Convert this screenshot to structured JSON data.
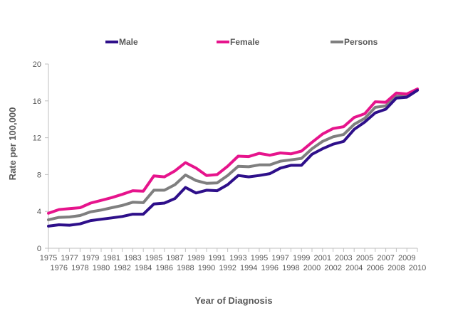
{
  "chart_data": {
    "type": "line",
    "xlabel": "Year of Diagnosis",
    "ylabel": "Rate per 100,000",
    "ylim": [
      0,
      20
    ],
    "yticks": [
      "0",
      "4",
      "8",
      "12",
      "16",
      "20"
    ],
    "grid": false,
    "legend_position": "top",
    "x": [
      "1975",
      "1976",
      "1977",
      "1978",
      "1979",
      "1980",
      "1981",
      "1982",
      "1983",
      "1984",
      "1985",
      "1986",
      "1987",
      "1988",
      "1989",
      "1990",
      "1991",
      "1992",
      "1993",
      "1994",
      "1995",
      "1996",
      "1997",
      "1998",
      "1999",
      "2000",
      "2001",
      "2002",
      "2003",
      "2004",
      "2005",
      "2006",
      "2007",
      "2008",
      "2009",
      "2010"
    ],
    "series": [
      {
        "name": "Male",
        "color": "#2e0f8a",
        "values": [
          2.4,
          2.55,
          2.5,
          2.65,
          3.0,
          3.15,
          3.3,
          3.45,
          3.7,
          3.7,
          4.8,
          4.9,
          5.4,
          6.6,
          6.0,
          6.3,
          6.25,
          6.9,
          7.9,
          7.75,
          7.9,
          8.1,
          8.7,
          9.0,
          9.0,
          10.2,
          10.8,
          11.3,
          11.6,
          12.9,
          13.7,
          14.7,
          15.1,
          16.3,
          16.4,
          17.15
        ]
      },
      {
        "name": "Female",
        "color": "#e6148c",
        "values": [
          3.8,
          4.2,
          4.3,
          4.4,
          4.9,
          5.2,
          5.5,
          5.85,
          6.25,
          6.2,
          7.85,
          7.75,
          8.4,
          9.3,
          8.7,
          7.9,
          8.0,
          8.9,
          10.0,
          9.95,
          10.3,
          10.1,
          10.35,
          10.25,
          10.55,
          11.5,
          12.4,
          13.0,
          13.2,
          14.2,
          14.6,
          15.9,
          15.85,
          16.85,
          16.75,
          17.3
        ]
      },
      {
        "name": "Persons",
        "color": "#7f7f7f",
        "values": [
          3.1,
          3.35,
          3.4,
          3.55,
          3.95,
          4.15,
          4.4,
          4.65,
          5.0,
          4.95,
          6.3,
          6.3,
          6.9,
          7.95,
          7.35,
          7.05,
          7.1,
          7.9,
          8.9,
          8.85,
          9.05,
          9.05,
          9.45,
          9.6,
          9.75,
          10.8,
          11.6,
          12.1,
          12.35,
          13.45,
          14.1,
          15.3,
          15.45,
          16.5,
          16.55,
          17.2
        ]
      }
    ]
  }
}
